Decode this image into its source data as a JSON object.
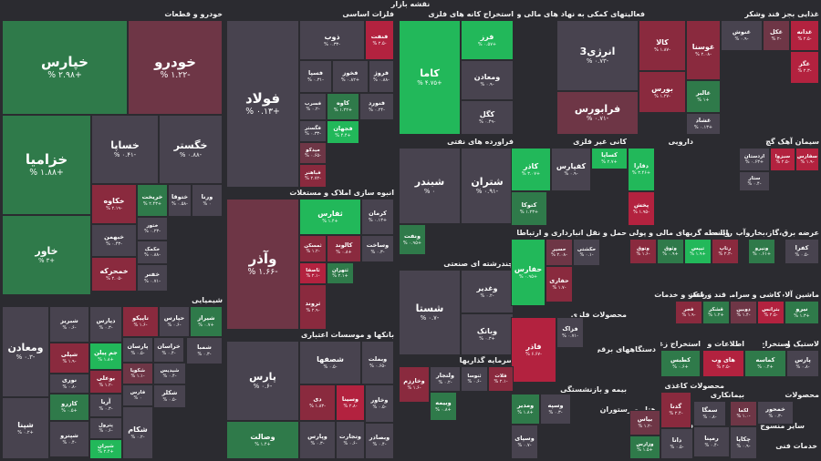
{
  "title": "نقشه بازار",
  "colors": {
    "background": "#2b2b30",
    "pos_strong": "#1f9a4c",
    "pos_light": "#22b85a",
    "pos_mid": "#2f7a4a",
    "neutral": "#48434f",
    "neg_light": "#6e3646",
    "neg_mid": "#8a2a3e",
    "neg_strong": "#b3223f"
  },
  "sectors": [
    {
      "name": "خودرو و قطعات"
    },
    {
      "name": "فلزات اساسی"
    },
    {
      "name": "استخراج کانه های فلزی"
    },
    {
      "name": "فعالیتهای کمکی به نهاد های مالی واسط"
    },
    {
      "name": "غذایی بجز قند وشکر"
    },
    {
      "name": "فراورده های نفتی"
    },
    {
      "name": "کانی غیر فلزی"
    },
    {
      "name": "دارویی"
    },
    {
      "name": "سیمان آهک گچ"
    },
    {
      "name": "انبوه سازی املاک و مستغلات"
    },
    {
      "name": "شیمیایی"
    },
    {
      "name": "بانکها و موسسات اعتباری"
    },
    {
      "name": "چندرشته ای صنعتی"
    },
    {
      "name": "واسطه گریهای مالی و پولی"
    },
    {
      "name": "حمل و نقل انبارداری و ارتباطات"
    },
    {
      "name": "رایانه"
    },
    {
      "name": "عرضه برق،گاز،بخاروآب"
    },
    {
      "name": "زراعت و خدمات"
    },
    {
      "name": "قند و شکر"
    },
    {
      "name": "کاشی و سرامیک"
    },
    {
      "name": "ماشین آلات و"
    },
    {
      "name": "محصولات فلزی"
    },
    {
      "name": "دستگاههای برقی"
    },
    {
      "name": "استخراج زغال"
    },
    {
      "name": "اطلاعات و"
    },
    {
      "name": "استخراج"
    },
    {
      "name": "لاستیک و"
    },
    {
      "name": "سرمایه گذاریها"
    },
    {
      "name": "بیمه و بازنشستگی"
    },
    {
      "name": "هتل و رستوران"
    },
    {
      "name": "محصولات کاغذی"
    },
    {
      "name": "فنی و مهندسی"
    },
    {
      "name": "بیمانکاری"
    },
    {
      "name": "محصولات"
    },
    {
      "name": "سایر منسوج"
    },
    {
      "name": "مخابرات"
    },
    {
      "name": "خدمات فنی"
    },
    {
      "name": "پیمانکاری"
    },
    {
      "name": "منسوجات"
    }
  ],
  "tiles": [
    {
      "name": "خپارس",
      "change": "+۲.۹۸ %",
      "tone": "pos_mid"
    },
    {
      "name": "خودرو",
      "change": "-۱.۲۲ %",
      "tone": "neg_light"
    },
    {
      "name": "خزامیا",
      "change": "+۱.۸۸ %",
      "tone": "pos_mid"
    },
    {
      "name": "خساپا",
      "change": "-۰.۴۱ %",
      "tone": "neutral"
    },
    {
      "name": "خگستر",
      "change": "-۰.۸۸ %",
      "tone": "neutral"
    },
    {
      "name": "خکاوه",
      "change": "-۲.۱۹ %",
      "tone": "neg_mid"
    },
    {
      "name": "خریخت",
      "change": "+۲.۴۳ %",
      "tone": "pos_mid"
    },
    {
      "name": "ختوقا",
      "change": "-۰.۵۸ %",
      "tone": "neutral"
    },
    {
      "name": "ورنا",
      "change": "۰ %",
      "tone": "neutral"
    },
    {
      "name": "خاور",
      "change": "+۳ %",
      "tone": "pos_mid"
    },
    {
      "name": "ختور",
      "change": "-۰.۲۳ %",
      "tone": "neutral"
    },
    {
      "name": "خبهمن",
      "change": "-۰.۴۳ %",
      "tone": "neutral"
    },
    {
      "name": "خمحرکه",
      "change": "-۲.۰۵ %",
      "tone": "neg_mid"
    },
    {
      "name": "خفنر",
      "change": "-۰.۷۱ %",
      "tone": "neutral"
    },
    {
      "name": "خکمک",
      "change": "-۰.۸۸ %",
      "tone": "neutral"
    },
    {
      "name": "فولاد",
      "change": "+۰.۱۳ %",
      "tone": "neutral"
    },
    {
      "name": "ذوب",
      "change": "-۰.۳۳ %",
      "tone": "neutral"
    },
    {
      "name": "فنفت",
      "change": "-۲.۵ %",
      "tone": "neg_strong"
    },
    {
      "name": "فسپا",
      "change": "-۰.۳۱ %",
      "tone": "neutral"
    },
    {
      "name": "فخوز",
      "change": "+۰.۸۲ %",
      "tone": "neutral"
    },
    {
      "name": "فروژ",
      "change": "-۰.۸۸ %",
      "tone": "neutral"
    },
    {
      "name": "فسرب",
      "change": "-۰.۲ %",
      "tone": "neutral"
    },
    {
      "name": "کاوه",
      "change": "+۱.۲۲ %",
      "tone": "pos_mid"
    },
    {
      "name": "فگستر",
      "change": "-۰.۳۳ %",
      "tone": "neutral"
    },
    {
      "name": "میدکو",
      "change": "-۰.۶۵ %",
      "tone": "neg_light"
    },
    {
      "name": "فباهنر",
      "change": "-۲.۷۲ %",
      "tone": "neg_mid"
    },
    {
      "name": "فنورد",
      "change": "-۰.۲۴ %",
      "tone": "neutral"
    },
    {
      "name": "فجهان",
      "change": "+۴.۴ %",
      "tone": "pos_light"
    },
    {
      "name": "کاما",
      "change": "+۴.۷۵ %",
      "tone": "pos_light"
    },
    {
      "name": "فرز",
      "change": "+۰.۵۷ %",
      "tone": "pos_light"
    },
    {
      "name": "ومعادن",
      "change": "-۰.۹ %",
      "tone": "neutral"
    },
    {
      "name": "کگل",
      "change": "-۰.۴۹ %",
      "tone": "neutral"
    },
    {
      "name": "انرژی3",
      "change": "-۰.۷۳ %",
      "tone": "neutral"
    },
    {
      "name": "کالا",
      "change": "-۱.۸۷ %",
      "tone": "neg_mid"
    },
    {
      "name": "بورس",
      "change": "-۱.۲۷ %",
      "tone": "neg_mid"
    },
    {
      "name": "فرابورس",
      "change": "-۰.۷۱ %",
      "tone": "neg_light"
    },
    {
      "name": "غوسنا",
      "change": "-۲.۰۸ %",
      "tone": "neg_mid"
    },
    {
      "name": "غنوش",
      "change": "-۰.۹ %",
      "tone": "neutral"
    },
    {
      "name": "غکل",
      "change": "-۲ %",
      "tone": "neg_light"
    },
    {
      "name": "غدانه",
      "change": "-۲.۵ %",
      "tone": "neg_strong"
    },
    {
      "name": "غالبر",
      "change": "+۱ %",
      "tone": "pos_mid"
    },
    {
      "name": "غشاد",
      "change": "+۰.۱۳ %",
      "tone": "neutral"
    },
    {
      "name": "غگز",
      "change": "-۲.۳ %",
      "tone": "neg_strong"
    },
    {
      "name": "شبندر",
      "change": "۰ %",
      "tone": "neutral"
    },
    {
      "name": "شتران",
      "change": "-۰.۹۱ %",
      "tone": "neutral"
    },
    {
      "name": "ونفت",
      "change": "+۰.۹۵ %",
      "tone": "pos_mid"
    },
    {
      "name": "کاذر",
      "change": "+۳.۰۷ %",
      "tone": "pos_light"
    },
    {
      "name": "کفپارس",
      "change": "-۰.۹ %",
      "tone": "neutral"
    },
    {
      "name": "کساپا",
      "change": "+۲.۷ %",
      "tone": "pos_light"
    },
    {
      "name": "دقارا",
      "change": "+۳.۴۶ %",
      "tone": "pos_light"
    },
    {
      "name": "کتوکا",
      "change": "+۱.۲۳ %",
      "tone": "pos_mid"
    },
    {
      "name": "پخش",
      "change": "-۱.۹۵ %",
      "tone": "neg_strong"
    },
    {
      "name": "اردستان",
      "change": "+۰.۶۳ %",
      "tone": "neutral"
    },
    {
      "name": "سبزوا",
      "change": "-۲.۵ %",
      "tone": "neg_strong"
    },
    {
      "name": "سفارس",
      "change": "-۱.۹ %",
      "tone": "neg_strong"
    },
    {
      "name": "ستار",
      "change": "-۰.۴ %",
      "tone": "neutral"
    },
    {
      "name": "وآذر",
      "change": "-۱.۶۶ %",
      "tone": "neg_light"
    },
    {
      "name": "ثفارس",
      "change": "+۱.۴ %",
      "tone": "pos_light"
    },
    {
      "name": "ثمسکن",
      "change": "-۱.۲ %",
      "tone": "neg_mid"
    },
    {
      "name": "کرمان",
      "change": "+۰.۱۳ %",
      "tone": "neutral"
    },
    {
      "name": "ثاصفا",
      "change": "-۲.۱ %",
      "tone": "neg_strong"
    },
    {
      "name": "کالوند",
      "change": "+۰.۸ %",
      "tone": "neg_mid"
    },
    {
      "name": "وساخت",
      "change": "-۰.۳ %",
      "tone": "neutral"
    },
    {
      "name": "ثتهران",
      "change": "+۲.۱ %",
      "tone": "pos_mid"
    },
    {
      "name": "ثروند",
      "change": "-۲.۹ %",
      "tone": "neg_mid"
    },
    {
      "name": "شستا",
      "change": "-۰.۷ %",
      "tone": "neutral"
    },
    {
      "name": "وغدیر",
      "change": "-۰.۲ %",
      "tone": "neutral"
    },
    {
      "name": "وبانک",
      "change": "+۰.۳ %",
      "tone": "neutral"
    },
    {
      "name": "فاذر",
      "change": "-۶.۶۷ %",
      "tone": "neg_strong"
    },
    {
      "name": "فزاک",
      "change": "-۰.۷۱ %",
      "tone": "neutral"
    },
    {
      "name": "حفارس",
      "change": "+۰.۹۵ %",
      "tone": "pos_light"
    },
    {
      "name": "حسیر",
      "change": "-۲.۰۸ %",
      "tone": "neg_light"
    },
    {
      "name": "حفاری",
      "change": "-۱.۷ %",
      "tone": "neg_mid"
    },
    {
      "name": "حکشتی",
      "change": "-۰.۱ %",
      "tone": "neutral"
    },
    {
      "name": "وتوق",
      "change": "-۱.۶ %",
      "tone": "neg_mid"
    },
    {
      "name": "وثوق",
      "change": "+۰.۹ %",
      "tone": "pos_mid"
    },
    {
      "name": "تیپس",
      "change": "+۱.۹ %",
      "tone": "pos_light"
    },
    {
      "name": "رتاپ",
      "change": "-۲.۳ %",
      "tone": "neg_mid"
    },
    {
      "name": "ونیرو",
      "change": "+۰.۶۱ %",
      "tone": "pos_mid"
    },
    {
      "name": "فجر",
      "change": "-۱.۹ %",
      "tone": "neg_mid"
    },
    {
      "name": "قشکر",
      "change": "+۱.۲ %",
      "tone": "pos_mid"
    },
    {
      "name": "ذوبین",
      "change": "-۱.۴ %",
      "tone": "neg_light"
    },
    {
      "name": "کفرا",
      "change": "-۰.۵ %",
      "tone": "neutral"
    },
    {
      "name": "بترانس",
      "change": "-۲.۵ %",
      "tone": "neg_strong"
    },
    {
      "name": "نیرو",
      "change": "+۱.۳ %",
      "tone": "pos_mid"
    },
    {
      "name": "کطبس",
      "change": "+۰.۶ %",
      "tone": "pos_mid"
    },
    {
      "name": "های وب",
      "change": "-۲.۵ %",
      "tone": "neg_strong"
    },
    {
      "name": "کماسه",
      "change": "+۰.۴ %",
      "tone": "pos_mid"
    },
    {
      "name": "پارس",
      "change": "-۰.۸ %",
      "tone": "neutral"
    },
    {
      "name": "ومعادن",
      "change": "-۰.۳ %",
      "tone": "neutral"
    },
    {
      "name": "شبریز",
      "change": "-۰.۶ %",
      "tone": "neutral"
    },
    {
      "name": "دپارس",
      "change": "-۰.۳ %",
      "tone": "neutral"
    },
    {
      "name": "تاپیکو",
      "change": "-۱.۶ %",
      "tone": "neg_mid"
    },
    {
      "name": "حپارس",
      "change": "-۰.۶ %",
      "tone": "neutral"
    },
    {
      "name": "شیراز",
      "change": "+۰.۷ %",
      "tone": "pos_mid"
    },
    {
      "name": "جم پیلن",
      "change": "+۱.۸ %",
      "tone": "pos_light"
    },
    {
      "name": "شپلی",
      "change": "-۱.۹ %",
      "tone": "neg_mid"
    },
    {
      "name": "بوعلی",
      "change": "-۱.۲ %",
      "tone": "neg_mid"
    },
    {
      "name": "پارسان",
      "change": "-۰.۵ %",
      "tone": "neutral"
    },
    {
      "name": "خراسان",
      "change": "-۰.۴ %",
      "tone": "neutral"
    },
    {
      "name": "آریا",
      "change": "-۰.۳ %",
      "tone": "neutral"
    },
    {
      "name": "شکویا",
      "change": "-۱.۱ %",
      "tone": "neg_light"
    },
    {
      "name": "کازرو",
      "change": "+۰.۵ %",
      "tone": "pos_mid"
    },
    {
      "name": "نوری",
      "change": "-۰.۸ %",
      "tone": "neutral"
    },
    {
      "name": "فارس",
      "change": "۰ %",
      "tone": "neutral"
    },
    {
      "name": "شیدیس",
      "change": "-۰.۴ %",
      "tone": "neutral"
    },
    {
      "name": "پترول",
      "change": "-۰.۶ %",
      "tone": "neutral"
    },
    {
      "name": "شکلر",
      "change": "-۰.۵ %",
      "tone": "neutral"
    },
    {
      "name": "شمبا",
      "change": "-۰.۳ %",
      "tone": "neutral"
    },
    {
      "name": "شپنا",
      "change": "+۰.۲ %",
      "tone": "neutral"
    },
    {
      "name": "شپترو",
      "change": "-۰.۴ %",
      "tone": "neutral"
    },
    {
      "name": "شیران",
      "change": "+۲.۴ %",
      "tone": "pos_light"
    },
    {
      "name": "شکام",
      "change": "-۰.۲ %",
      "tone": "neutral"
    },
    {
      "name": "پارس",
      "change": "-۰.۶ %",
      "tone": "neutral"
    },
    {
      "name": "شصفها",
      "change": "-۰.۵ %",
      "tone": "neutral"
    },
    {
      "name": "وبملت",
      "change": "-۰.۶۵ %",
      "tone": "neutral"
    },
    {
      "name": "دی",
      "change": "-۱.۸۳ %",
      "tone": "neg_mid"
    },
    {
      "name": "وسینا",
      "change": "-۲.۸ %",
      "tone": "neg_strong"
    },
    {
      "name": "وصالت",
      "change": "+۱.۴ %",
      "tone": "pos_mid"
    },
    {
      "name": "وپارس",
      "change": "-۰.۳ %",
      "tone": "neutral"
    },
    {
      "name": "وتجارت",
      "change": "-۰.۶ %",
      "tone": "neutral"
    },
    {
      "name": "وخاور",
      "change": "-۰.۵ %",
      "tone": "neutral"
    },
    {
      "name": "وبصادر",
      "change": "-۰.۴ %",
      "tone": "neutral"
    },
    {
      "name": "وخارزم",
      "change": "-۱.۶ %",
      "tone": "neg_mid"
    },
    {
      "name": "ولتجار",
      "change": "-۰.۲ %",
      "tone": "neutral"
    },
    {
      "name": "ثنوسا",
      "change": "-۰.۶ %",
      "tone": "neutral"
    },
    {
      "name": "فلات",
      "change": "-۲.۱ %",
      "tone": "neg_mid"
    },
    {
      "name": "وبیمه",
      "change": "+۰.۸ %",
      "tone": "pos_mid"
    },
    {
      "name": "ومدیر",
      "change": "+۱.۸ %",
      "tone": "pos_mid"
    },
    {
      "name": "وسپه",
      "change": "-۰.۳ %",
      "tone": "neutral"
    },
    {
      "name": "وسپای",
      "change": "-۰.۷ %",
      "tone": "neutral"
    },
    {
      "name": "بیاس",
      "change": "-۱.۲ %",
      "tone": "neg_light"
    },
    {
      "name": "وزارس",
      "change": "+۱.۵ %",
      "tone": "pos_mid"
    },
    {
      "name": "دانا",
      "change": "-۰.۵ %",
      "tone": "neutral"
    },
    {
      "name": "سمگا",
      "change": "-۰.۸ %",
      "tone": "neutral"
    },
    {
      "name": "گدنا",
      "change": "-۲.۴ %",
      "tone": "neg_mid"
    },
    {
      "name": "رمپنا",
      "change": "-۰.۴ %",
      "tone": "neutral"
    },
    {
      "name": "لکما",
      "change": "-۱.۰ %",
      "tone": "neg_light"
    },
    {
      "name": "چکاپا",
      "change": "-۰.۹ %",
      "tone": "neutral"
    },
    {
      "name": "خمحور",
      "change": "-۰.۳ %",
      "tone": "neutral"
    },
    {
      "name": "وسایل",
      "change": "-۰.۵ %",
      "tone": "neutral"
    },
    {
      "name": "خصدرا",
      "change": "-۲.۰ %",
      "tone": "neg_strong"
    },
    {
      "name": "تجارت",
      "change": "-۰.۳ %",
      "tone": "neutral"
    }
  ]
}
